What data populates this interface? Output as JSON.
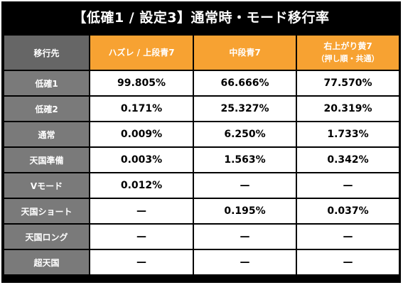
{
  "title": "【低確1 / 設定3】通常時・モード移行率",
  "header": {
    "row_label": "移行先",
    "col1": "ハズレ / 上段青7",
    "col2": "中段青7",
    "col3_line1": "右上がり黄7",
    "col3_line2": "（押し順・共通）"
  },
  "rows": [
    {
      "label": "低確1",
      "v1": "99.805%",
      "v2": "66.666%",
      "v3": "77.570%"
    },
    {
      "label": "低確2",
      "v1": "0.171%",
      "v2": "25.327%",
      "v3": "20.319%"
    },
    {
      "label": "通常",
      "v1": "0.009%",
      "v2": "6.250%",
      "v3": "1.733%"
    },
    {
      "label": "天国準備",
      "v1": "0.003%",
      "v2": "1.563%",
      "v3": "0.342%"
    },
    {
      "label": "Vモード",
      "v1": "0.012%",
      "v2": "—",
      "v3": "—"
    },
    {
      "label": "天国ショート",
      "v1": "—",
      "v2": "0.195%",
      "v3": "0.037%"
    },
    {
      "label": "天国ロング",
      "v1": "—",
      "v2": "—",
      "v3": "—"
    },
    {
      "label": "超天国",
      "v1": "—",
      "v2": "—",
      "v3": "—"
    }
  ]
}
